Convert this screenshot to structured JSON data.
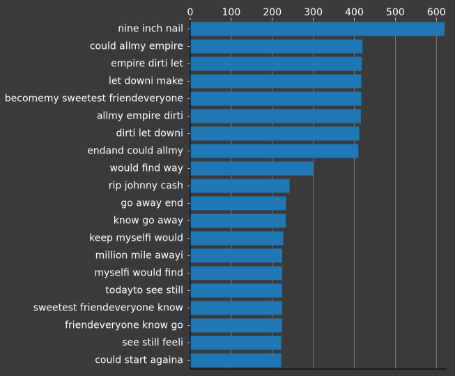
{
  "chart_data": {
    "type": "bar",
    "orientation": "horizontal",
    "categories": [
      "nine inch nail",
      "could allmy empire",
      "empire dirti let",
      "let downi make",
      "becomemy sweetest friendeveryone",
      "allmy empire dirti",
      "dirti let downi",
      "endand could allmy",
      "would find way",
      "rip johnny cash",
      "go away end",
      "know go away",
      "keep myselfi would",
      "million mile awayi",
      "myselfi would find",
      "todayto see still",
      "sweetest friendeveryone know",
      "friendeveryone know go",
      "see still feeli",
      "could start againa"
    ],
    "values": [
      620,
      420,
      418,
      417,
      417,
      416,
      412,
      410,
      300,
      242,
      234,
      233,
      227,
      224,
      224,
      224,
      224,
      224,
      222,
      222
    ],
    "xlim": [
      0,
      625
    ],
    "xticks": [
      0,
      100,
      200,
      300,
      400,
      500,
      600
    ],
    "xaxis_position": "top",
    "grid": "vertical",
    "bar_color": "#1f77b4",
    "background": "#3a3a3a",
    "text_color": "#ffffff",
    "grid_color": "#8a8a8a"
  }
}
